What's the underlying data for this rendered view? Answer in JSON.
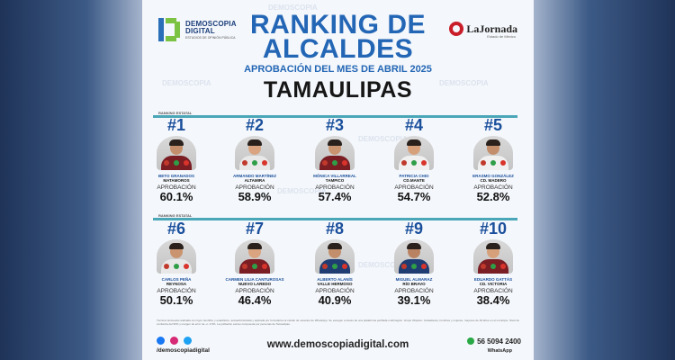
{
  "brand": {
    "name_line1": "DEMOSCOPIA",
    "name_line2": "DIGITAL",
    "tagline": "ESTUDIOS DE OPINIÓN PÚBLICA"
  },
  "partner": {
    "name": "LaJornada",
    "sub": "Estado de México"
  },
  "title_line1": "RANKING DE",
  "title_line2": "ALCALDES",
  "subtitle": "APROBACIÓN DEL MES DE ABRIL 2025",
  "state": "TAMAULIPAS",
  "row_label": "RANKING ESTATAL",
  "approval_label": "APROBACIÓN",
  "mayors": [
    {
      "rank": "#1",
      "name": "BETO GRANADOS",
      "city": "MATAMOROS",
      "approval": "60.1%"
    },
    {
      "rank": "#2",
      "name": "ARMANDO MARTÍNEZ",
      "city": "ALTAMIRA",
      "approval": "58.9%"
    },
    {
      "rank": "#3",
      "name": "MÓNICA VILLARREAL",
      "city": "TAMPICO",
      "approval": "57.4%"
    },
    {
      "rank": "#4",
      "name": "PATRICIA CHIO",
      "city": "CD.MANTE",
      "approval": "54.7%"
    },
    {
      "rank": "#5",
      "name": "ERASMO GONZÁLEZ",
      "city": "CD. MADERO",
      "approval": "52.8%"
    },
    {
      "rank": "#6",
      "name": "CARLOS PEÑA",
      "city": "REYNOSA",
      "approval": "50.1%"
    },
    {
      "rank": "#7",
      "name": "CARMEN LILIA CANTUROSAS",
      "city": "NUEVO LAREDO",
      "approval": "46.4%"
    },
    {
      "rank": "#8",
      "name": "ALBERTO ALANÍS",
      "city": "VALLE HERMOSO",
      "approval": "40.9%"
    },
    {
      "rank": "#9",
      "name": "MIGUEL ALMARAZ",
      "city": "RÍO BRAVO",
      "approval": "39.1%"
    },
    {
      "rank": "#10",
      "name": "EDUARDO GATTÁS",
      "city": "CD. VICTORIA",
      "approval": "38.4%"
    }
  ],
  "footer": {
    "note": "Técnica: Encuesta realizada con rigor científico y estadístico, autoadministrada y aplicada por formularios al celular de usuarios de WhatsApp. Se escogen a través de una plataforma perfilada multirregión. Grupo Objetivo: Ciudadanos, hombres y mujeres, mayores de 18 años en el municipio. Nivel de confianza del 95% y margen de error de +/- 3.5%. La población estuvo compuesta por personas de Tamaulipas.",
    "handle": "/demoscopiadigital",
    "url": "www.demoscopiadigital.com",
    "phone": "56 5094 2400",
    "whatsapp": "WhatsApp"
  },
  "colors": {
    "accent": "#2366b5",
    "rank": "#1a4f9c",
    "rule": "#4aa7b8"
  }
}
